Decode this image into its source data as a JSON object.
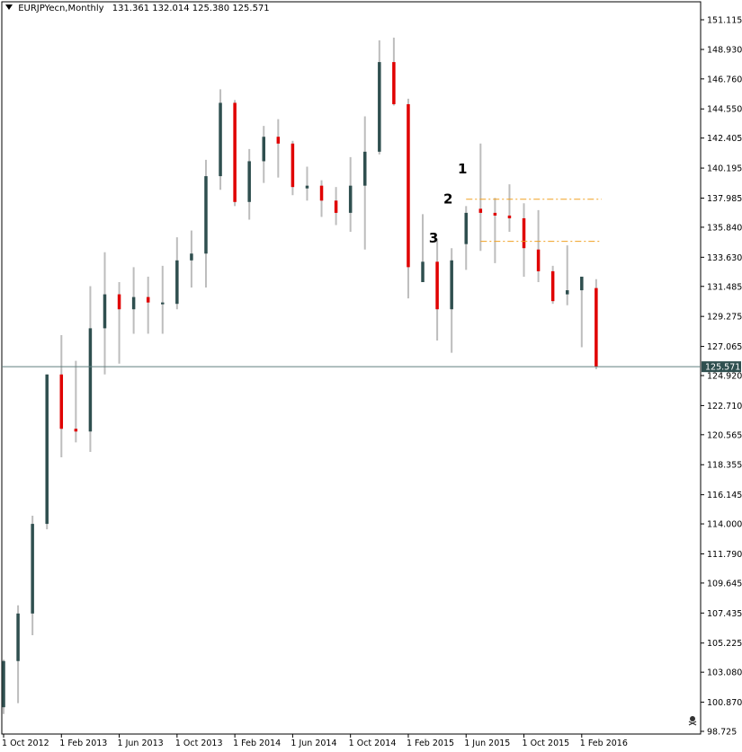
{
  "header": {
    "symbol": "EURJPYecn,Monthly",
    "ohlc": "131.361 132.014 125.380 125.571"
  },
  "colors": {
    "bull": "#2f4f4f",
    "bear": "#e00000",
    "wick": "#bdbdbd",
    "level_line": "#f0a020",
    "price_line": "#5f7f7f",
    "price_tag_bg": "#2f4f4f"
  },
  "chart_data": {
    "type": "candlestick",
    "ylim": [
      98.725,
      151.115
    ],
    "y_ticks": [
      "151.115",
      "148.930",
      "146.760",
      "144.550",
      "142.405",
      "140.195",
      "137.985",
      "135.840",
      "133.630",
      "131.485",
      "129.275",
      "127.065",
      "124.920",
      "122.710",
      "120.565",
      "118.355",
      "116.145",
      "114.000",
      "111.790",
      "109.645",
      "107.435",
      "105.225",
      "103.080",
      "100.870",
      "98.725"
    ],
    "x_labels": [
      {
        "label": "1 Oct 2012",
        "index": 0
      },
      {
        "label": "1 Feb 2013",
        "index": 4
      },
      {
        "label": "1 Jun 2013",
        "index": 8
      },
      {
        "label": "1 Oct 2013",
        "index": 12
      },
      {
        "label": "1 Feb 2014",
        "index": 16
      },
      {
        "label": "1 Jun 2014",
        "index": 20
      },
      {
        "label": "1 Oct 2014",
        "index": 24
      },
      {
        "label": "1 Feb 2015",
        "index": 28
      },
      {
        "label": "1 Jun 2015",
        "index": 32
      },
      {
        "label": "1 Oct 2015",
        "index": 36
      },
      {
        "label": "1 Feb 2016",
        "index": 40
      }
    ],
    "candles": [
      {
        "o": 100.5,
        "h": 104.0,
        "l": 100.0,
        "c": 103.9
      },
      {
        "o": 103.9,
        "h": 108.0,
        "l": 100.8,
        "c": 107.4
      },
      {
        "o": 107.4,
        "h": 114.6,
        "l": 105.8,
        "c": 114.0
      },
      {
        "o": 114.0,
        "h": 125.0,
        "l": 113.6,
        "c": 125.0
      },
      {
        "o": 125.0,
        "h": 127.9,
        "l": 118.9,
        "c": 121.0
      },
      {
        "o": 121.0,
        "h": 126.0,
        "l": 120.0,
        "c": 120.8
      },
      {
        "o": 120.8,
        "h": 131.5,
        "l": 119.3,
        "c": 128.4
      },
      {
        "o": 128.4,
        "h": 134.0,
        "l": 125.0,
        "c": 130.9
      },
      {
        "o": 130.9,
        "h": 131.8,
        "l": 125.8,
        "c": 129.8
      },
      {
        "o": 129.8,
        "h": 132.9,
        "l": 128.0,
        "c": 130.7
      },
      {
        "o": 130.7,
        "h": 132.2,
        "l": 128.0,
        "c": 130.3
      },
      {
        "o": 130.3,
        "h": 133.0,
        "l": 128.0,
        "c": 130.3
      },
      {
        "o": 130.2,
        "h": 135.1,
        "l": 129.8,
        "c": 133.4
      },
      {
        "o": 133.4,
        "h": 135.6,
        "l": 131.4,
        "c": 133.9
      },
      {
        "o": 133.9,
        "h": 140.8,
        "l": 131.4,
        "c": 139.6
      },
      {
        "o": 139.6,
        "h": 146.0,
        "l": 138.6,
        "c": 145.0
      },
      {
        "o": 145.0,
        "h": 145.2,
        "l": 137.4,
        "c": 137.7
      },
      {
        "o": 137.7,
        "h": 141.6,
        "l": 136.4,
        "c": 140.7
      },
      {
        "o": 140.7,
        "h": 143.3,
        "l": 139.1,
        "c": 142.5
      },
      {
        "o": 142.5,
        "h": 143.8,
        "l": 139.5,
        "c": 142.0
      },
      {
        "o": 142.0,
        "h": 142.2,
        "l": 138.2,
        "c": 138.8
      },
      {
        "o": 138.7,
        "h": 140.3,
        "l": 137.8,
        "c": 138.9
      },
      {
        "o": 138.9,
        "h": 139.3,
        "l": 136.6,
        "c": 137.8
      },
      {
        "o": 137.8,
        "h": 138.8,
        "l": 136.0,
        "c": 136.9
      },
      {
        "o": 136.9,
        "h": 141.0,
        "l": 135.5,
        "c": 138.9
      },
      {
        "o": 138.9,
        "h": 144.0,
        "l": 134.2,
        "c": 141.4
      },
      {
        "o": 141.4,
        "h": 149.6,
        "l": 141.2,
        "c": 148.0
      },
      {
        "o": 148.0,
        "h": 149.8,
        "l": 144.8,
        "c": 144.9
      },
      {
        "o": 144.9,
        "h": 145.3,
        "l": 130.6,
        "c": 132.9
      },
      {
        "o": 131.8,
        "h": 136.8,
        "l": 131.8,
        "c": 133.3
      },
      {
        "o": 133.3,
        "h": 135.0,
        "l": 127.5,
        "c": 129.8
      },
      {
        "o": 129.8,
        "h": 134.3,
        "l": 126.6,
        "c": 133.4
      },
      {
        "o": 134.6,
        "h": 137.4,
        "l": 132.7,
        "c": 136.9
      },
      {
        "o": 137.2,
        "h": 142.0,
        "l": 134.1,
        "c": 136.9
      },
      {
        "o": 136.9,
        "h": 138.0,
        "l": 133.2,
        "c": 136.7
      },
      {
        "o": 136.7,
        "h": 139.0,
        "l": 135.5,
        "c": 136.5
      },
      {
        "o": 136.5,
        "h": 137.6,
        "l": 132.2,
        "c": 134.3
      },
      {
        "o": 134.2,
        "h": 137.1,
        "l": 131.8,
        "c": 132.6
      },
      {
        "o": 132.6,
        "h": 133.0,
        "l": 130.2,
        "c": 130.4
      },
      {
        "o": 130.9,
        "h": 134.5,
        "l": 130.1,
        "c": 131.2
      },
      {
        "o": 131.2,
        "h": 132.2,
        "l": 127.0,
        "c": 132.2
      },
      {
        "o": 131.361,
        "h": 132.014,
        "l": 125.38,
        "c": 125.571
      }
    ],
    "wave_labels": [
      {
        "text": "1",
        "index": 32,
        "price": 139.8
      },
      {
        "text": "2",
        "index": 31,
        "price": 137.6
      },
      {
        "text": "3",
        "index": 30,
        "price": 134.7
      }
    ],
    "levels": [
      {
        "price": 137.9,
        "from_index": 32,
        "to_index": 41
      },
      {
        "price": 134.8,
        "from_index": 33,
        "to_index": 41
      }
    ],
    "current_price": "125.571"
  }
}
